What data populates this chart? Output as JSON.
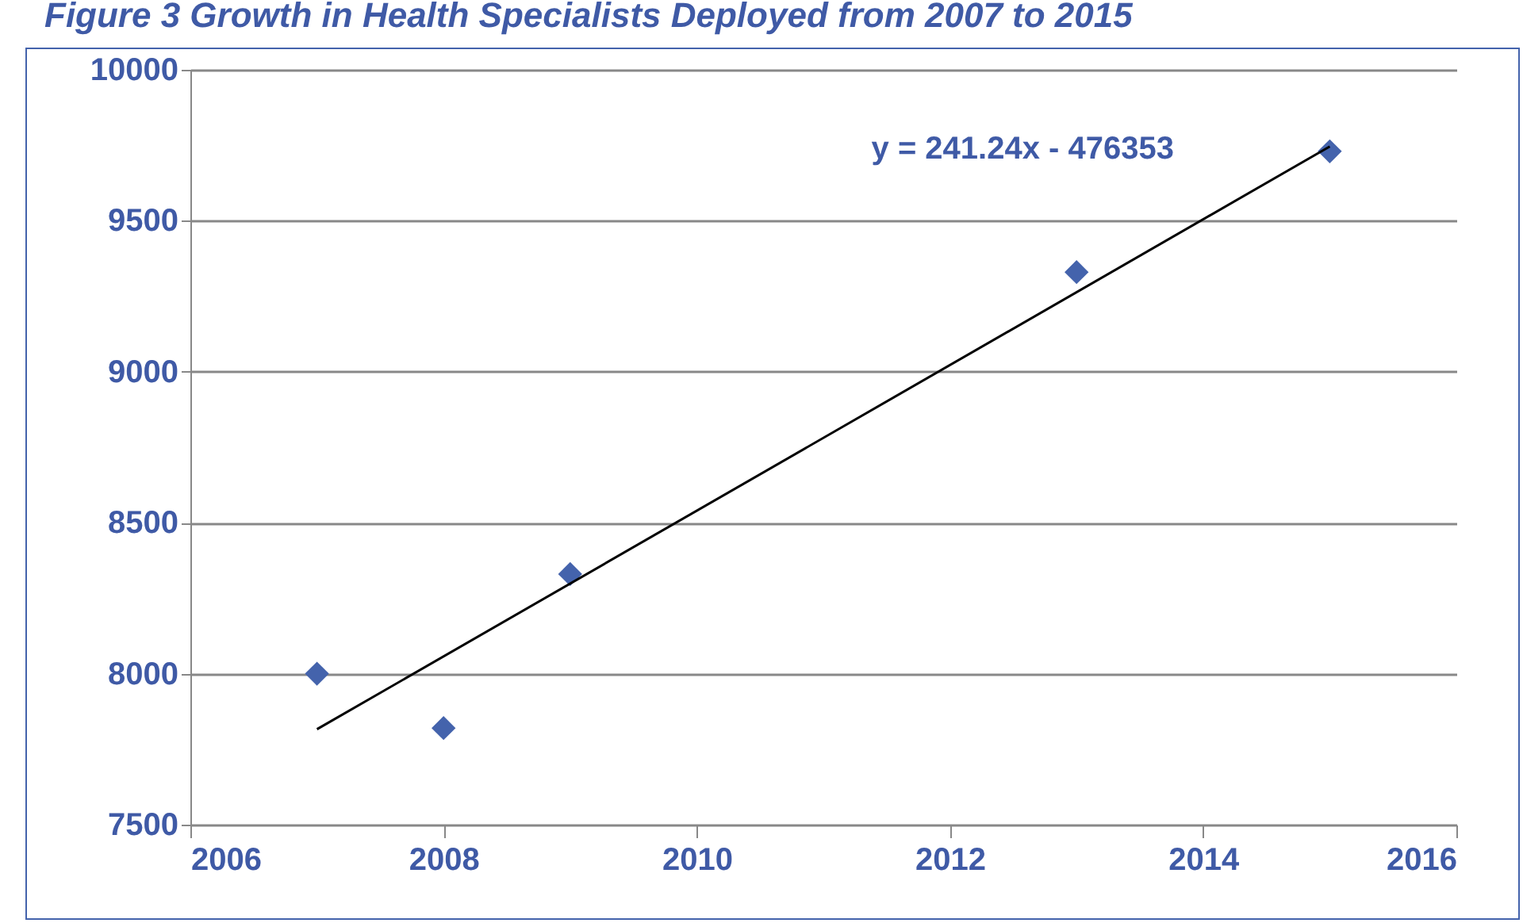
{
  "chart_data": {
    "type": "scatter",
    "title": "Figure 3 Growth in Health Specialists Deployed from 2007 to 2015",
    "x": [
      2007,
      2008,
      2009,
      2013,
      2015
    ],
    "series": [
      {
        "color": "#4463ac",
        "values": [
          8000,
          7820,
          8330,
          9330,
          9730
        ]
      },
      {
        "type": "line",
        "marker": "none",
        "color": "#000000",
        "x": [
          2007,
          2015
        ],
        "values": [
          7816,
          9746
        ]
      }
    ],
    "annotations": [
      "y = 241.24x - 476353"
    ],
    "xlim": [
      2006,
      2016
    ],
    "xticks": [
      2006,
      2008,
      2010,
      2012,
      2014,
      2016
    ],
    "ylim": [
      7500,
      10000
    ],
    "yticks": [
      7500,
      8000,
      8500,
      9000,
      9500,
      10000
    ],
    "grid": "y",
    "marker": "diamond"
  }
}
